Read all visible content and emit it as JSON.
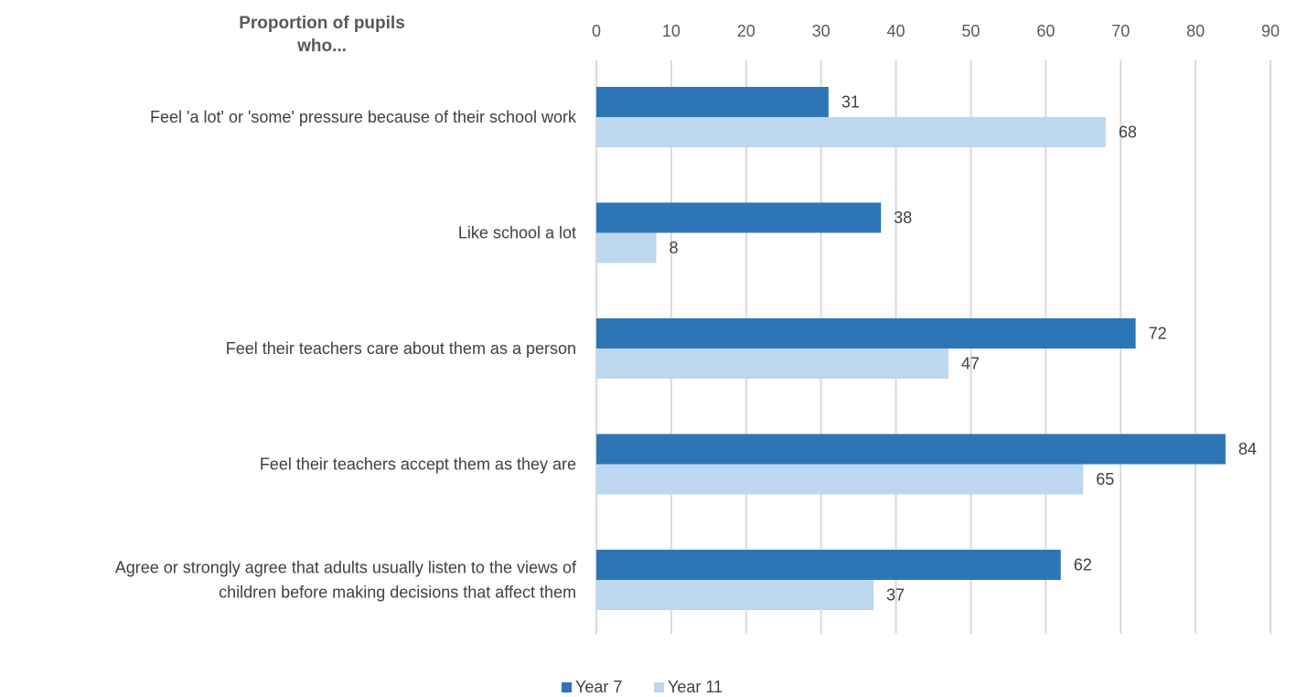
{
  "chart_data": {
    "type": "bar",
    "orientation": "horizontal",
    "title_lines": [
      "Proportion of pupils",
      "who..."
    ],
    "xlim": [
      0,
      90
    ],
    "xticks": [
      0,
      10,
      20,
      30,
      40,
      50,
      60,
      70,
      80,
      90
    ],
    "grid": true,
    "legend_position": "bottom",
    "categories": [
      [
        "Feel 'a lot' or 'some' pressure because of their school work"
      ],
      [
        "Like school a lot"
      ],
      [
        "Feel their teachers care about them as a person"
      ],
      [
        "Feel their teachers accept them as they are"
      ],
      [
        "Agree or strongly agree that adults usually listen to the views of",
        "children before making decisions that affect them"
      ]
    ],
    "series": [
      {
        "name": "Year 7",
        "color": "#2E75B6",
        "values": [
          31,
          38,
          72,
          84,
          62
        ]
      },
      {
        "name": "Year 11",
        "color": "#BDD7EE",
        "values": [
          68,
          8,
          47,
          65,
          37
        ]
      }
    ]
  }
}
